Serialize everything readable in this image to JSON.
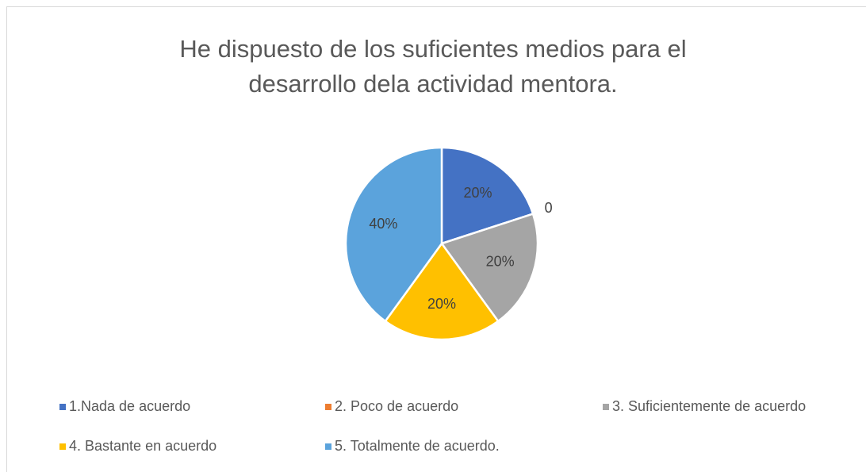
{
  "chart_data": {
    "type": "pie",
    "title": "He dispuesto de los suficientes medios para el desarrollo dela actividad mentora.",
    "categories": [
      "1.Nada de acuerdo",
      "2. Poco de acuerdo",
      "3. Suficientemente de acuerdo",
      "4. Bastante en acuerdo",
      "5. Totalmente de acuerdo."
    ],
    "values": [
      20,
      0,
      20,
      20,
      40
    ],
    "value_labels": [
      "20%",
      "0",
      "20%",
      "20%",
      "40%"
    ],
    "colors": [
      "#4472c4",
      "#ed7d31",
      "#a5a5a5",
      "#ffc000",
      "#5ba3dc"
    ],
    "legend": "bottom"
  }
}
